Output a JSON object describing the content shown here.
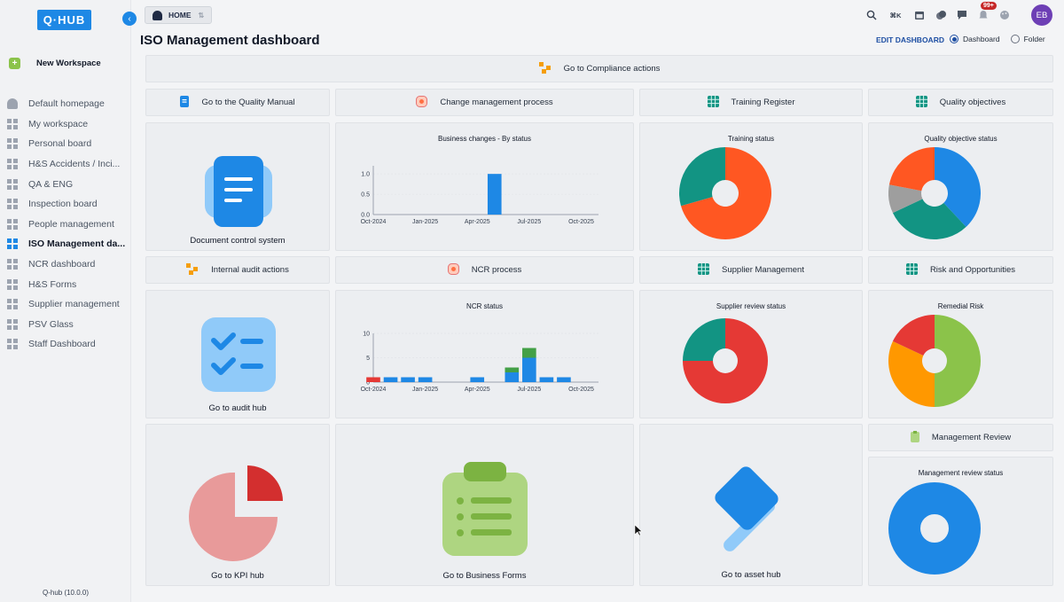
{
  "app": {
    "logo": "Q·HUB",
    "version": "Q-hub (10.0.0)"
  },
  "sidebar": {
    "new_workspace": "New Workspace",
    "items": [
      {
        "label": "Default homepage"
      },
      {
        "label": "My workspace"
      },
      {
        "label": "Personal board"
      },
      {
        "label": "H&S Accidents / Inci..."
      },
      {
        "label": "QA & ENG"
      },
      {
        "label": "Inspection board"
      },
      {
        "label": "People management"
      },
      {
        "label": "ISO Management da..."
      },
      {
        "label": "NCR dashboard"
      },
      {
        "label": "H&S Forms"
      },
      {
        "label": "Supplier management"
      },
      {
        "label": "PSV Glass"
      },
      {
        "label": "Staff Dashboard"
      }
    ]
  },
  "topbar": {
    "home": "HOME",
    "shortcut": "⌘K",
    "notifications": "99+",
    "avatar": "EB"
  },
  "page": {
    "title": "ISO Management dashboard",
    "edit": "EDIT DASHBOARD",
    "radio_dashboard": "Dashboard",
    "radio_folder": "Folder"
  },
  "tiles": {
    "compliance": "Go to Compliance actions",
    "quality_manual": "Go to the Quality Manual",
    "change_mgmt": "Change management process",
    "training_register": "Training Register",
    "quality_objectives": "Quality objectives",
    "doc_control": "Document control system",
    "business_changes": "Business changes - By status",
    "training_status": "Training status",
    "quality_obj_status": "Quality objective status",
    "internal_audit": "Internal audit actions",
    "ncr_process": "NCR process",
    "supplier_mgmt": "Supplier Management",
    "risk": "Risk and Opportunities",
    "audit_hub": "Go to audit hub",
    "ncr_status": "NCR status",
    "supplier_review": "Supplier review status",
    "remedial_risk": "Remedial Risk",
    "kpi_hub": "Go to KPI hub",
    "business_forms": "Go to Business Forms",
    "asset_hub": "Go to asset hub",
    "mgmt_review": "Management Review",
    "mgmt_review_status": "Management review status"
  },
  "chart_data": [
    {
      "type": "bar",
      "title": "Business changes - By status",
      "x_ticks": [
        "Oct-2024",
        "Jan-2025",
        "Apr-2025",
        "Jul-2025",
        "Oct-2025"
      ],
      "y_ticks": [
        "0.0",
        "0.5",
        "1.0"
      ],
      "ylim": [
        0,
        1.2
      ],
      "bars": [
        {
          "month": "May-2025",
          "value": 1,
          "color": "#1e88e5"
        }
      ]
    },
    {
      "type": "pie",
      "title": "Training status",
      "slices": [
        {
          "value": 60,
          "color": "#ff5722"
        },
        {
          "value": 25,
          "color": "#129483"
        }
      ]
    },
    {
      "type": "pie",
      "title": "Quality objective status",
      "slices": [
        {
          "value": 38,
          "color": "#1e88e5"
        },
        {
          "value": 30,
          "color": "#129483"
        },
        {
          "value": 10,
          "color": "#9e9e9e"
        },
        {
          "value": 22,
          "color": "#ff5722"
        }
      ]
    },
    {
      "type": "bar",
      "title": "NCR status",
      "x_ticks": [
        "Oct-2024",
        "Jan-2025",
        "Apr-2025",
        "Jul-2025",
        "Oct-2025"
      ],
      "y_ticks": [
        "0",
        "5",
        "10"
      ],
      "ylim": [
        0,
        10
      ],
      "months": [
        "Oct-2024",
        "Nov-2024",
        "Dec-2024",
        "Jan-2025",
        "Feb-2025",
        "Mar-2025",
        "Apr-2025",
        "May-2025",
        "Jun-2025",
        "Jul-2025",
        "Aug-2025",
        "Sep-2025",
        "Oct-2025"
      ],
      "series": [
        {
          "color": "#e53935",
          "values": [
            1,
            0,
            0,
            0,
            0,
            0,
            0,
            0,
            0,
            0,
            0,
            0,
            0
          ]
        },
        {
          "color": "#1e88e5",
          "values": [
            0,
            1,
            1,
            1,
            0,
            0,
            1,
            0,
            2,
            5,
            1,
            1,
            0
          ]
        },
        {
          "color": "#43a047",
          "values": [
            0,
            0,
            0,
            0,
            0,
            0,
            0,
            0,
            1,
            2,
            0,
            0,
            0
          ]
        }
      ]
    },
    {
      "type": "pie",
      "title": "Supplier review status",
      "slices": [
        {
          "value": 75,
          "color": "#e53935"
        },
        {
          "value": 25,
          "color": "#129483"
        }
      ]
    },
    {
      "type": "pie",
      "title": "Remedial Risk",
      "slices": [
        {
          "value": 50,
          "color": "#8bc34a"
        },
        {
          "value": 32,
          "color": "#ff9800"
        },
        {
          "value": 18,
          "color": "#e53935"
        }
      ]
    },
    {
      "type": "pie",
      "title": "Management review status",
      "slices": [
        {
          "value": 100,
          "color": "#1e88e5"
        }
      ]
    }
  ]
}
